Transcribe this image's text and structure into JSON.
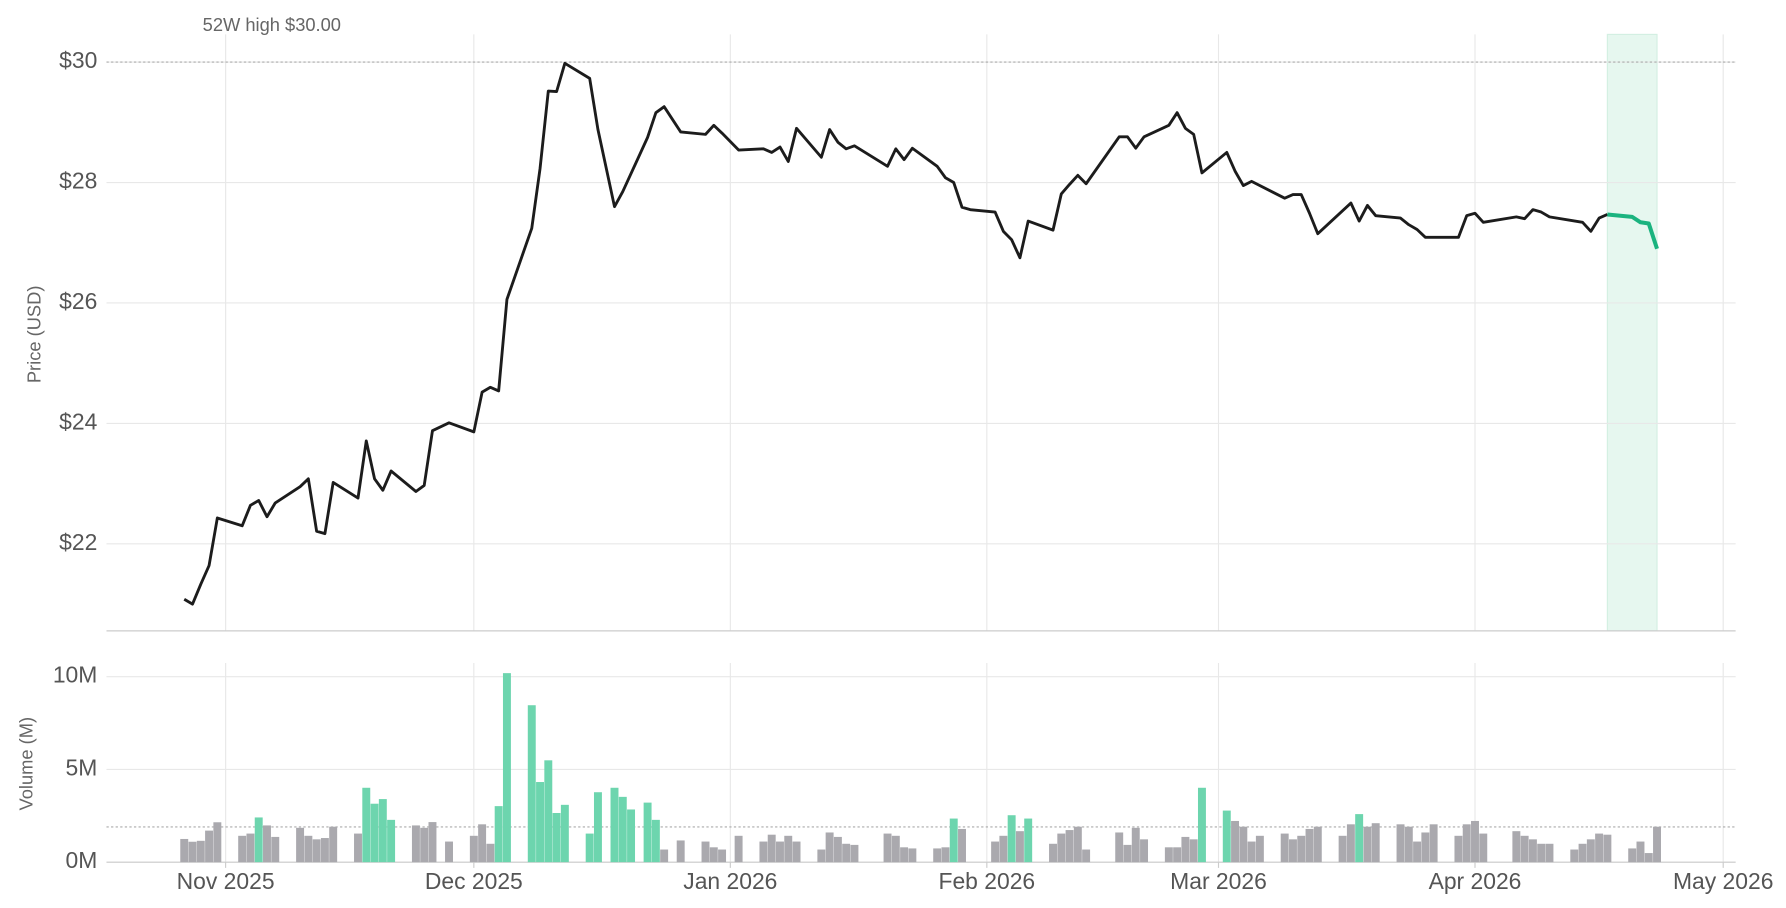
{
  "chart_data": [
    {
      "type": "line",
      "ylabel": "Price (USD)",
      "annotation": "52W high $30.00",
      "reference_line": 30,
      "xlim": [
        -14.4,
        182.5
      ],
      "ylim": [
        20.555,
        30.46
      ],
      "yticks": [
        {
          "value": 22,
          "label": "$22"
        },
        {
          "value": 24,
          "label": "$24"
        },
        {
          "value": 26,
          "label": "$26"
        },
        {
          "value": 28,
          "label": "$28"
        },
        {
          "value": 30,
          "label": "$30"
        }
      ],
      "grid": true,
      "highlight": [
        167,
        173
      ],
      "highlight_color": "#e6f7ef",
      "series": [
        {
          "color": "#1c1c1c",
          "x": [
            -5,
            -4,
            -3,
            -2,
            -1,
            2,
            3,
            4,
            5,
            6,
            9,
            10,
            11,
            12,
            13,
            16,
            17,
            18,
            19,
            20,
            23,
            24,
            25,
            27,
            30,
            31,
            32,
            33,
            34,
            37,
            38,
            39,
            40,
            41,
            44,
            45,
            47,
            48,
            51,
            52,
            53,
            55,
            58,
            59,
            60,
            62,
            65,
            66,
            67,
            68,
            69,
            72,
            73,
            74,
            75,
            76,
            80,
            81,
            82,
            83,
            86,
            87,
            88,
            89,
            90,
            93,
            94,
            95,
            96,
            97,
            100,
            101,
            102,
            103,
            104,
            108,
            109,
            110,
            111,
            114,
            115,
            116,
            117,
            118,
            121,
            122,
            123,
            124,
            128,
            129,
            130,
            131,
            132,
            136,
            137,
            138,
            139,
            142,
            143,
            144,
            145,
            146,
            149,
            150,
            151,
            152,
            156,
            157,
            158,
            159,
            160,
            164,
            165,
            166,
            167
          ],
          "values": [
            21.08,
            21.0,
            21.33,
            21.64,
            22.43,
            22.3,
            22.64,
            22.72,
            22.45,
            22.68,
            22.95,
            23.08,
            22.21,
            22.17,
            23.02,
            22.76,
            23.71,
            23.08,
            22.89,
            23.21,
            22.87,
            22.97,
            23.88,
            24.01,
            23.86,
            24.52,
            24.6,
            24.54,
            26.06,
            27.24,
            28.23,
            29.52,
            29.51,
            29.98,
            29.73,
            28.88,
            27.6,
            27.85,
            28.75,
            29.16,
            29.26,
            28.84,
            28.8,
            28.95,
            28.82,
            28.54,
            28.56,
            28.5,
            28.59,
            28.35,
            28.9,
            28.42,
            28.88,
            28.67,
            28.56,
            28.61,
            28.27,
            28.56,
            28.38,
            28.57,
            28.27,
            28.08,
            28.0,
            27.59,
            27.55,
            27.51,
            27.19,
            27.05,
            26.75,
            27.36,
            27.21,
            27.81,
            27.97,
            28.12,
            27.98,
            28.76,
            28.76,
            28.57,
            28.76,
            28.95,
            29.16,
            28.9,
            28.8,
            28.16,
            28.5,
            28.19,
            27.95,
            28.02,
            27.74,
            27.8,
            27.8,
            27.49,
            27.15,
            27.66,
            27.36,
            27.62,
            27.45,
            27.41,
            27.3,
            27.22,
            27.09,
            27.09,
            27.09,
            27.45,
            27.49,
            27.34,
            27.43,
            27.4,
            27.55,
            27.51,
            27.43,
            27.34,
            27.19,
            27.41,
            27.47
          ]
        },
        {
          "color": "#1bb37f",
          "x": [
            167,
            170,
            171,
            172,
            173
          ],
          "values": [
            27.47,
            27.43,
            27.34,
            27.32,
            26.9
          ]
        }
      ]
    },
    {
      "type": "bar",
      "ylabel": "Volume (M)",
      "reference_line": 1.9,
      "xlim": [
        -14.4,
        182.5
      ],
      "ylim": [
        0,
        10.74
      ],
      "xticks": [
        {
          "value": 0,
          "label": "Nov 2025"
        },
        {
          "value": 30,
          "label": "Dec 2025"
        },
        {
          "value": 61,
          "label": "Jan 2026"
        },
        {
          "value": 92,
          "label": "Feb 2026"
        },
        {
          "value": 120,
          "label": "Mar 2026"
        },
        {
          "value": 151,
          "label": "Apr 2026"
        },
        {
          "value": 181,
          "label": "May 2026"
        }
      ],
      "yticks": [
        {
          "value": 0,
          "label": "0M"
        },
        {
          "value": 5,
          "label": "5M"
        },
        {
          "value": 10,
          "label": "10M"
        }
      ],
      "grid": true,
      "series": [
        {
          "color": "#aaa9ae",
          "x": [
            -5,
            -4,
            -3,
            -2,
            -1,
            2,
            3,
            5,
            6,
            9,
            10,
            11,
            12,
            13,
            16,
            23,
            24,
            25,
            27,
            30,
            31,
            32,
            53,
            55,
            58,
            59,
            60,
            62,
            65,
            66,
            67,
            68,
            69,
            72,
            73,
            74,
            75,
            76,
            80,
            81,
            82,
            83,
            86,
            87,
            89,
            93,
            94,
            96,
            100,
            101,
            102,
            103,
            104,
            108,
            109,
            110,
            111,
            114,
            115,
            116,
            117,
            122,
            123,
            124,
            125,
            128,
            129,
            130,
            131,
            132,
            135,
            136,
            138,
            139,
            142,
            143,
            144,
            145,
            146,
            149,
            150,
            151,
            152,
            156,
            157,
            158,
            159,
            160,
            163,
            164,
            165,
            166,
            167,
            170,
            171,
            172,
            173
          ],
          "values": [
            1.25,
            1.1,
            1.15,
            1.7,
            2.15,
            1.42,
            1.54,
            1.98,
            1.36,
            1.85,
            1.42,
            1.23,
            1.3,
            1.91,
            1.54,
            1.98,
            1.85,
            2.16,
            1.11,
            1.42,
            2.04,
            0.99,
            0.68,
            1.17,
            1.11,
            0.8,
            0.68,
            1.42,
            1.11,
            1.48,
            1.11,
            1.42,
            1.11,
            0.68,
            1.6,
            1.36,
            0.99,
            0.93,
            1.54,
            1.42,
            0.8,
            0.74,
            0.74,
            0.8,
            1.79,
            1.11,
            1.42,
            1.67,
            0.99,
            1.54,
            1.73,
            1.91,
            0.68,
            1.6,
            0.93,
            1.85,
            1.23,
            0.8,
            0.8,
            1.36,
            1.23,
            2.22,
            1.91,
            1.11,
            1.42,
            1.54,
            1.23,
            1.42,
            1.79,
            1.91,
            1.42,
            2.04,
            1.91,
            2.1,
            2.04,
            1.91,
            1.11,
            1.6,
            2.04,
            1.42,
            2.04,
            2.22,
            1.54,
            1.67,
            1.42,
            1.23,
            0.99,
            0.99,
            0.68,
            0.99,
            1.23,
            1.54,
            1.48,
            0.74,
            1.11,
            0.49,
            1.91
          ]
        },
        {
          "color": "#6dd5ae",
          "x": [
            4,
            17,
            18,
            19,
            20,
            33,
            34,
            37,
            38,
            39,
            40,
            41,
            44,
            45,
            47,
            48,
            49,
            51,
            52,
            88,
            95,
            97,
            118,
            121,
            137
          ],
          "values": [
            2.41,
            4.01,
            3.15,
            3.4,
            2.28,
            3.02,
            10.19,
            8.46,
            4.32,
            5.49,
            2.65,
            3.09,
            1.54,
            3.77,
            4.01,
            3.52,
            2.84,
            3.21,
            2.28,
            2.35,
            2.53,
            2.35,
            4.01,
            2.78,
            2.59
          ]
        }
      ]
    }
  ]
}
